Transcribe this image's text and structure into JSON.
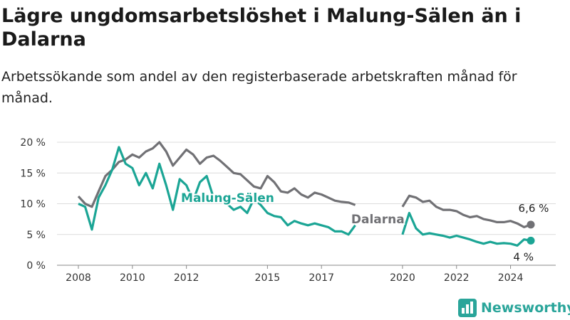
{
  "title": "Lägre ungdomsarbetslöshet i Malung-Sälen än i Dalarna",
  "subtitle": "Arbetssökande som andel av den registerbaserade arbetskraften månad för månad.",
  "logo_text": "Newsworthy",
  "chart_data": {
    "type": "line",
    "title": "Lägre ungdomsarbetslöshet i Malung-Sälen än i Dalarna",
    "subtitle": "Arbetssökande som andel av den registerbaserade arbetskraften månad för månad.",
    "xlabel": "",
    "ylabel": "",
    "xlim": [
      2008,
      2024.75
    ],
    "ylim": [
      0,
      20
    ],
    "grid": true,
    "y_ticks": [
      0,
      5,
      10,
      15,
      20
    ],
    "y_tick_labels": [
      "0 %",
      "5 %",
      "10 %",
      "15 %",
      "20 %"
    ],
    "x_ticks": [
      2008,
      2010,
      2012,
      2015,
      2017,
      2020,
      2022,
      2024
    ],
    "x_tick_labels": [
      "2008",
      "2010",
      "2012",
      "2015",
      "2017",
      "2020",
      "2022",
      "2024"
    ],
    "series": [
      {
        "name": "Dalarna",
        "color": "#717175",
        "end_label": "6,6 %",
        "x": [
          2008.0,
          2008.25,
          2008.5,
          2008.75,
          2009.0,
          2009.25,
          2009.5,
          2009.75,
          2010.0,
          2010.25,
          2010.5,
          2010.75,
          2011.0,
          2011.25,
          2011.5,
          2011.75,
          2012.0,
          2012.25,
          2012.5,
          2012.75,
          2013.0,
          2013.25,
          2013.5,
          2013.75,
          2014.0,
          2014.25,
          2014.5,
          2014.75,
          2015.0,
          2015.25,
          2015.5,
          2015.75,
          2016.0,
          2016.25,
          2016.5,
          2016.75,
          2017.0,
          2017.25,
          2017.5,
          2017.75,
          2018.0,
          2018.25,
          2018.5,
          2018.75,
          2019.0,
          2019.25,
          2019.5,
          2019.75,
          2020.0,
          2020.25,
          2020.5,
          2020.75,
          2021.0,
          2021.25,
          2021.5,
          2021.75,
          2022.0,
          2022.25,
          2022.5,
          2022.75,
          2023.0,
          2023.25,
          2023.5,
          2023.75,
          2024.0,
          2024.25,
          2024.5,
          2024.75
        ],
        "values": [
          11.2,
          10.0,
          9.5,
          12.0,
          14.5,
          15.5,
          16.8,
          17.2,
          18.0,
          17.5,
          18.5,
          19.0,
          20.0,
          18.5,
          16.2,
          17.5,
          18.8,
          18.0,
          16.5,
          17.5,
          17.8,
          17.0,
          16.0,
          15.0,
          14.8,
          13.8,
          12.8,
          12.5,
          14.5,
          13.5,
          12.0,
          11.8,
          12.5,
          11.5,
          11.0,
          11.8,
          11.5,
          11.0,
          10.5,
          10.3,
          10.2,
          9.8,
          null,
          null,
          null,
          null,
          null,
          null,
          9.5,
          11.3,
          11.0,
          10.3,
          10.5,
          9.5,
          9.0,
          9.0,
          8.8,
          8.2,
          7.8,
          8.0,
          7.5,
          7.3,
          7.0,
          7.0,
          7.2,
          6.8,
          6.2,
          6.6
        ]
      },
      {
        "name": "Malung-Sälen",
        "color": "#1ba595",
        "end_label": "4 %",
        "x": [
          2008.0,
          2008.25,
          2008.5,
          2008.75,
          2009.0,
          2009.25,
          2009.5,
          2009.75,
          2010.0,
          2010.25,
          2010.5,
          2010.75,
          2011.0,
          2011.25,
          2011.5,
          2011.75,
          2012.0,
          2012.25,
          2012.5,
          2012.75,
          2013.0,
          2013.25,
          2013.5,
          2013.75,
          2014.0,
          2014.25,
          2014.5,
          2014.75,
          2015.0,
          2015.25,
          2015.5,
          2015.75,
          2016.0,
          2016.25,
          2016.5,
          2016.75,
          2017.0,
          2017.25,
          2017.5,
          2017.75,
          2018.0,
          2018.25,
          2018.5,
          2018.75,
          2019.0,
          2019.25,
          2019.5,
          2019.75,
          2020.0,
          2020.25,
          2020.5,
          2020.75,
          2021.0,
          2021.25,
          2021.5,
          2021.75,
          2022.0,
          2022.25,
          2022.5,
          2022.75,
          2023.0,
          2023.25,
          2023.5,
          2023.75,
          2024.0,
          2024.25,
          2024.5,
          2024.75
        ],
        "values": [
          10.0,
          9.5,
          5.8,
          11.0,
          13.0,
          15.5,
          19.2,
          16.5,
          15.8,
          13.0,
          15.0,
          12.5,
          16.5,
          13.0,
          9.0,
          14.0,
          13.0,
          10.5,
          13.5,
          14.5,
          11.0,
          10.5,
          10.0,
          9.0,
          9.5,
          8.5,
          10.8,
          9.8,
          8.5,
          8.0,
          7.8,
          6.5,
          7.2,
          6.8,
          6.5,
          6.8,
          6.5,
          6.2,
          5.5,
          5.5,
          5.0,
          6.5,
          null,
          null,
          null,
          null,
          null,
          null,
          5.0,
          8.5,
          6.0,
          5.0,
          5.2,
          5.0,
          4.8,
          4.5,
          4.8,
          4.5,
          4.2,
          3.8,
          3.5,
          3.8,
          3.5,
          3.6,
          3.5,
          3.2,
          4.2,
          4.0
        ]
      }
    ]
  }
}
